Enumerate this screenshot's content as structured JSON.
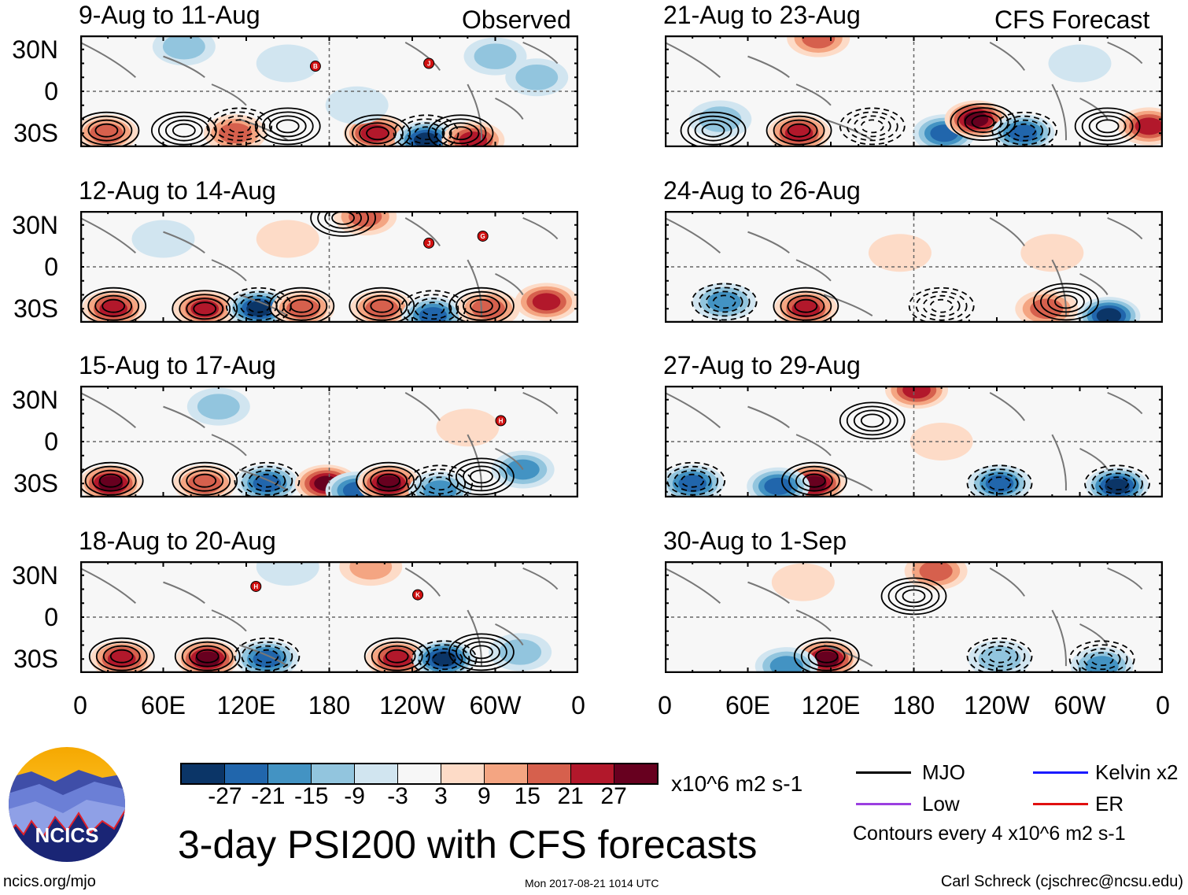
{
  "headers": {
    "left": "Observed",
    "right": "CFS Forecast"
  },
  "lat_labels": [
    "30N",
    "0",
    "30S"
  ],
  "lon_labels": [
    "0",
    "60E",
    "120E",
    "180",
    "120W",
    "60W",
    "0"
  ],
  "colorbar": {
    "labels": [
      "-27",
      "-21",
      "-15",
      "-9",
      "-3",
      "3",
      "9",
      "15",
      "21",
      "27"
    ],
    "colors": [
      "#0b3567",
      "#2166ac",
      "#4393c3",
      "#92c5de",
      "#d1e5f0",
      "#f7f7f7",
      "#fddbc7",
      "#f4a582",
      "#d6604d",
      "#b2182b",
      "#67001f"
    ],
    "units": "x10^6 m2 s-1"
  },
  "title": "3-day PSI200 with CFS forecasts",
  "legend": {
    "items": [
      {
        "label": "MJO",
        "color": "#000000"
      },
      {
        "label": "Kelvin x2",
        "color": "#1a1aff"
      },
      {
        "label": "Low",
        "color": "#9b3fe0"
      },
      {
        "label": "ER",
        "color": "#e01010"
      }
    ],
    "note": "Contours every 4 x10^6 m2 s-1"
  },
  "logo": {
    "text": "NCICS"
  },
  "footer": {
    "left": "ncics.org/mjo",
    "center": "Mon 2017-08-21 1014 UTC",
    "right": "Carl Schreck (cjschrec@ncsu.edu)"
  },
  "chart_data": {
    "type": "heatmap",
    "lon_range": [
      0,
      360
    ],
    "lat_range": [
      -40,
      40
    ],
    "panels": [
      {
        "title": "9-Aug to 11-Aug",
        "group": "Observed",
        "anomalies": [
          [
            19,
            -30,
            15
          ],
          [
            112,
            -30,
            15
          ],
          [
            213,
            -30,
            21
          ],
          [
            250,
            -35,
            -27
          ],
          [
            284,
            -35,
            21
          ],
          [
            75,
            32,
            -9
          ],
          [
            150,
            20,
            -3
          ],
          [
            330,
            10,
            -9
          ],
          [
            300,
            25,
            -9
          ],
          [
            200,
            -10,
            -3
          ]
        ],
        "contours": [
          [
            19,
            -28,
            1
          ],
          [
            75,
            -28,
            1
          ],
          [
            150,
            -25,
            1
          ],
          [
            215,
            -30,
            1
          ],
          [
            275,
            -30,
            1
          ],
          [
            115,
            -25,
            -1
          ],
          [
            250,
            -30,
            -1
          ]
        ],
        "storms": [
          [
            170,
            18,
            "B"
          ],
          [
            252,
            20,
            "J"
          ]
        ]
      },
      {
        "title": "12-Aug to 14-Aug",
        "group": "Observed",
        "anomalies": [
          [
            24,
            -30,
            21
          ],
          [
            90,
            -30,
            21
          ],
          [
            129,
            -30,
            -27
          ],
          [
            161,
            -30,
            15
          ],
          [
            218,
            -30,
            15
          ],
          [
            255,
            -35,
            -21
          ],
          [
            295,
            -30,
            15
          ],
          [
            337,
            -25,
            21
          ],
          [
            206,
            36,
            15
          ],
          [
            60,
            20,
            -3
          ],
          [
            150,
            20,
            3
          ]
        ],
        "contours": [
          [
            24,
            -28,
            1
          ],
          [
            90,
            -30,
            1
          ],
          [
            160,
            -28,
            1
          ],
          [
            218,
            -28,
            1
          ],
          [
            290,
            -28,
            1
          ],
          [
            129,
            -28,
            -1
          ],
          [
            255,
            -30,
            -1
          ],
          [
            190,
            35,
            1
          ]
        ],
        "storms": [
          [
            252,
            17,
            "J"
          ],
          [
            291,
            22,
            "G"
          ]
        ]
      },
      {
        "title": "15-Aug to 17-Aug",
        "group": "Observed",
        "anomalies": [
          [
            22,
            -30,
            27
          ],
          [
            90,
            -30,
            15
          ],
          [
            135,
            -30,
            -21
          ],
          [
            178,
            -30,
            27
          ],
          [
            200,
            -35,
            -21
          ],
          [
            223,
            -30,
            27
          ],
          [
            260,
            -35,
            -15
          ],
          [
            320,
            -20,
            -15
          ],
          [
            100,
            25,
            -9
          ],
          [
            280,
            10,
            3
          ]
        ],
        "contours": [
          [
            22,
            -28,
            1
          ],
          [
            90,
            -28,
            1
          ],
          [
            223,
            -28,
            1
          ],
          [
            290,
            -25,
            1
          ],
          [
            135,
            -28,
            -1
          ],
          [
            260,
            -30,
            -1
          ]
        ],
        "storms": [
          [
            304,
            15,
            "H"
          ]
        ]
      },
      {
        "title": "18-Aug to 20-Aug",
        "group": "Observed",
        "anomalies": [
          [
            30,
            -30,
            21
          ],
          [
            92,
            -30,
            27
          ],
          [
            135,
            -30,
            -21
          ],
          [
            229,
            -30,
            21
          ],
          [
            263,
            -30,
            -27
          ],
          [
            318,
            -25,
            -9
          ],
          [
            210,
            36,
            9
          ],
          [
            150,
            36,
            -3
          ]
        ],
        "contours": [
          [
            30,
            -28,
            1
          ],
          [
            92,
            -28,
            1
          ],
          [
            229,
            -28,
            1
          ],
          [
            290,
            -25,
            1
          ],
          [
            135,
            -28,
            -1
          ],
          [
            263,
            -30,
            -1
          ]
        ],
        "storms": [
          [
            127,
            22,
            "H"
          ],
          [
            244,
            16,
            "K"
          ]
        ]
      },
      {
        "title": "21-Aug to 23-Aug",
        "group": "CFS Forecast",
        "anomalies": [
          [
            97,
            -30,
            21
          ],
          [
            202,
            -30,
            -21
          ],
          [
            225,
            -20,
            27
          ],
          [
            259,
            -30,
            -21
          ],
          [
            350,
            -25,
            21
          ],
          [
            111,
            38,
            15
          ],
          [
            40,
            -20,
            -9
          ],
          [
            300,
            20,
            -3
          ]
        ],
        "contours": [
          [
            35,
            -28,
            1
          ],
          [
            97,
            -28,
            1
          ],
          [
            230,
            -22,
            1
          ],
          [
            320,
            -25,
            1
          ],
          [
            150,
            -25,
            -1
          ],
          [
            260,
            -28,
            -1
          ]
        ],
        "storms": []
      },
      {
        "title": "24-Aug to 26-Aug",
        "group": "CFS Forecast",
        "anomalies": [
          [
            102,
            -30,
            21
          ],
          [
            43,
            -25,
            -15
          ],
          [
            321,
            -35,
            -27
          ],
          [
            276,
            -30,
            15
          ],
          [
            170,
            10,
            3
          ],
          [
            280,
            10,
            3
          ]
        ],
        "contours": [
          [
            102,
            -28,
            1
          ],
          [
            43,
            -25,
            -1
          ],
          [
            200,
            -28,
            -1
          ],
          [
            290,
            -25,
            1
          ]
        ],
        "storms": []
      },
      {
        "title": "27-Aug to 29-Aug",
        "group": "CFS Forecast",
        "anomalies": [
          [
            20,
            -30,
            -21
          ],
          [
            108,
            -30,
            27
          ],
          [
            82,
            -32,
            -21
          ],
          [
            242,
            -30,
            -21
          ],
          [
            327,
            -32,
            -27
          ],
          [
            182,
            37,
            21
          ],
          [
            200,
            0,
            3
          ]
        ],
        "contours": [
          [
            108,
            -28,
            1
          ],
          [
            20,
            -28,
            -1
          ],
          [
            242,
            -30,
            -1
          ],
          [
            327,
            -30,
            -1
          ],
          [
            150,
            15,
            1
          ]
        ],
        "storms": []
      },
      {
        "title": "30-Aug to 1-Sep",
        "group": "CFS Forecast",
        "anomalies": [
          [
            117,
            -30,
            27
          ],
          [
            88,
            -35,
            -15
          ],
          [
            242,
            -30,
            -9
          ],
          [
            316,
            -35,
            -15
          ],
          [
            196,
            33,
            15
          ],
          [
            100,
            25,
            3
          ]
        ],
        "contours": [
          [
            117,
            -28,
            1
          ],
          [
            242,
            -28,
            -1
          ],
          [
            316,
            -30,
            -1
          ],
          [
            180,
            15,
            1
          ]
        ],
        "storms": []
      }
    ]
  }
}
